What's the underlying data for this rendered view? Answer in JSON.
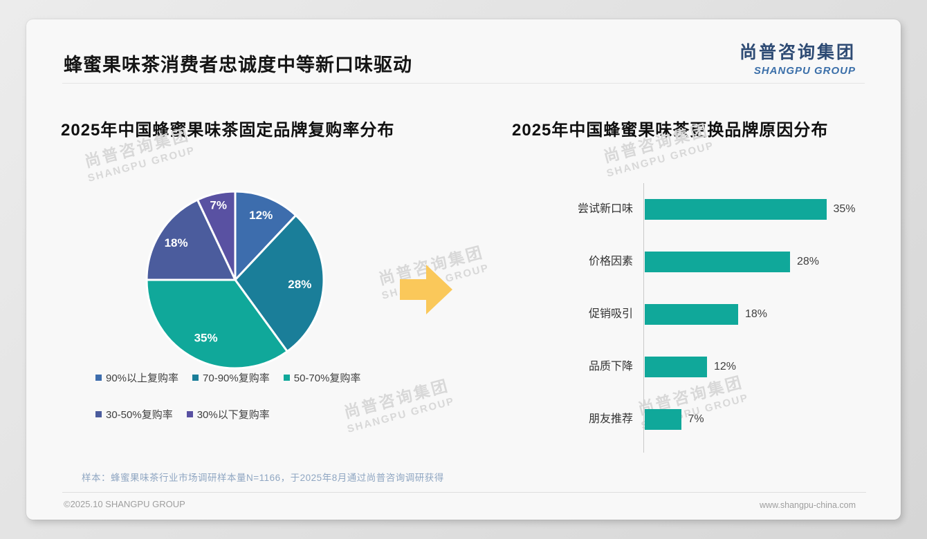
{
  "page": {
    "title": "蜂蜜果味茶消费者忠诚度中等新口味驱动",
    "logo": {
      "cn": "尚普咨询集团",
      "en": "SHANGPU GROUP"
    },
    "watermark": {
      "cn": "尚普咨询集团",
      "en": "SHANGPU GROUP"
    },
    "note": "样本：蜂蜜果味茶行业市场调研样本量N=1166，于2025年8月通过尚普咨询调研获得",
    "footer": {
      "left": "©2025.10 SHANGPU GROUP",
      "right": "www.shangpu-china.com"
    }
  },
  "colors": {
    "arrow": "#FAC85A",
    "bar": "#10A89A",
    "pie_stroke": "#FFFFFF"
  },
  "chart_data": [
    {
      "type": "pie",
      "title": "2025年中国蜂蜜果味茶固定品牌复购率分布",
      "labels": [
        "90%以上复购率",
        "70-90%复购率",
        "50-70%复购率",
        "30-50%复购率",
        "30%以下复购率"
      ],
      "values": [
        12,
        28,
        35,
        18,
        7
      ],
      "slice_labels": [
        "12%",
        "28%",
        "35%",
        "18%",
        "7%"
      ],
      "colors": [
        "#3D6DAD",
        "#1A7E99",
        "#10A89A",
        "#4B5C9D",
        "#5951A2"
      ],
      "start_angle_deg": 0,
      "direction": "clockwise",
      "legend_position": "bottom"
    },
    {
      "type": "bar",
      "title": "2025年中国蜂蜜果味茶更换品牌原因分布",
      "orientation": "horizontal",
      "categories": [
        "尝试新口味",
        "价格因素",
        "促销吸引",
        "品质下降",
        "朋友推荐"
      ],
      "values": [
        35,
        28,
        18,
        12,
        7
      ],
      "value_labels": [
        "35%",
        "28%",
        "18%",
        "12%",
        "7%"
      ],
      "bar_color": "#10A89A",
      "xlim": [
        0,
        37
      ],
      "grid": false,
      "axis_line": "left"
    }
  ]
}
